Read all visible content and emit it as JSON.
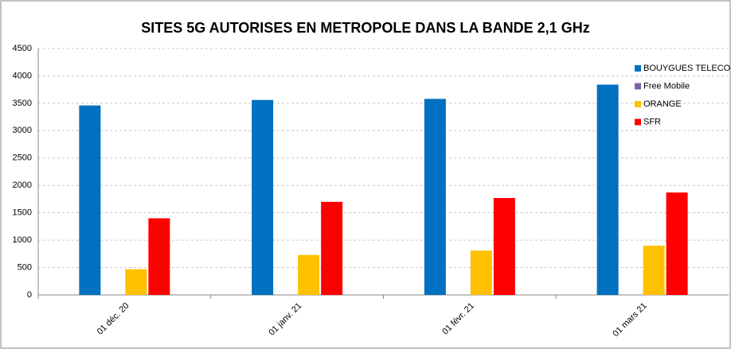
{
  "chart_data": {
    "type": "bar",
    "title": "SITES 5G AUTORISES EN METROPOLE DANS LA BANDE 2,1 GHz",
    "categories": [
      "01 déc. 20",
      "01 janv. 21",
      "01 févr. 21",
      "01 mars 21"
    ],
    "series": [
      {
        "name": "BOUYGUES TELECOM",
        "color": "#0070c0",
        "values": [
          3460,
          3560,
          3580,
          3840
        ]
      },
      {
        "name": "Free Mobile",
        "color": "#7f5fa8",
        "values": [
          0,
          0,
          0,
          0
        ]
      },
      {
        "name": "ORANGE",
        "color": "#ffc000",
        "values": [
          470,
          730,
          810,
          900
        ]
      },
      {
        "name": "SFR",
        "color": "#ff0000",
        "values": [
          1400,
          1700,
          1770,
          1870
        ]
      }
    ],
    "ylim": [
      0,
      4500
    ],
    "yticks": [
      0,
      500,
      1000,
      1500,
      2000,
      2500,
      3000,
      3500,
      4000,
      4500
    ],
    "grid": true,
    "legend": "right"
  }
}
